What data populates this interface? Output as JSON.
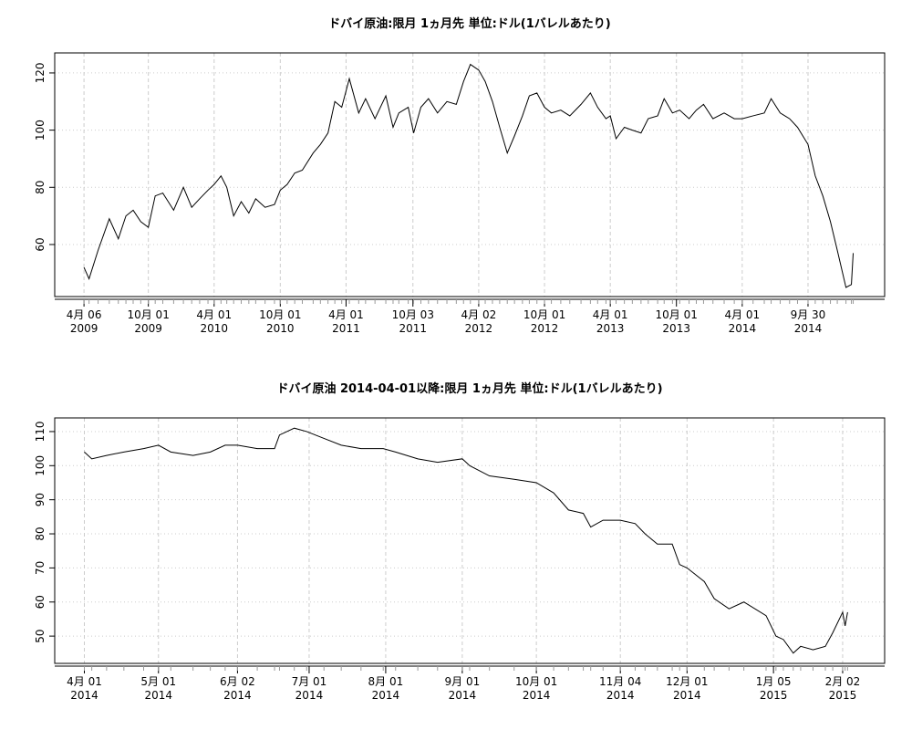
{
  "chart_data": [
    {
      "type": "line",
      "title": "ドバイ原油:限月 1ヵ月先 単位:ドル(1バレルあたり)",
      "color": "#000000",
      "grid": true,
      "xlim": [
        "2009-01-15",
        "2015-04-30"
      ],
      "ylim": [
        41.8,
        127
      ],
      "yticks": [
        60,
        80,
        100,
        120
      ],
      "xticks": [
        {
          "value": "2009-04-06",
          "label": [
            "4月 06",
            "2009"
          ]
        },
        {
          "value": "2009-10-01",
          "label": [
            "10月 01",
            "2009"
          ]
        },
        {
          "value": "2010-04-01",
          "label": [
            "4月 01",
            "2010"
          ]
        },
        {
          "value": "2010-10-01",
          "label": [
            "10月 01",
            "2010"
          ]
        },
        {
          "value": "2011-04-01",
          "label": [
            "4月 01",
            "2011"
          ]
        },
        {
          "value": "2011-10-03",
          "label": [
            "10月 03",
            "2011"
          ]
        },
        {
          "value": "2012-04-02",
          "label": [
            "4月 02",
            "2012"
          ]
        },
        {
          "value": "2012-10-01",
          "label": [
            "10月 01",
            "2012"
          ]
        },
        {
          "value": "2013-04-01",
          "label": [
            "4月 01",
            "2013"
          ]
        },
        {
          "value": "2013-10-01",
          "label": [
            "10月 01",
            "2013"
          ]
        },
        {
          "value": "2014-04-01",
          "label": [
            "4月 01",
            "2014"
          ]
        },
        {
          "value": "2014-09-30",
          "label": [
            "9月 30",
            "2014"
          ]
        }
      ],
      "x": [
        "2009-04-06",
        "2009-04-20",
        "2009-05-15",
        "2009-06-15",
        "2009-07-10",
        "2009-07-31",
        "2009-08-20",
        "2009-09-10",
        "2009-10-01",
        "2009-10-20",
        "2009-11-10",
        "2009-12-10",
        "2010-01-06",
        "2010-01-29",
        "2010-02-20",
        "2010-03-15",
        "2010-04-01",
        "2010-04-20",
        "2010-05-06",
        "2010-05-25",
        "2010-06-15",
        "2010-07-06",
        "2010-07-25",
        "2010-08-20",
        "2010-09-15",
        "2010-10-01",
        "2010-10-20",
        "2010-11-10",
        "2010-12-01",
        "2010-12-31",
        "2011-01-20",
        "2011-02-10",
        "2011-03-01",
        "2011-03-20",
        "2011-04-10",
        "2011-05-06",
        "2011-05-25",
        "2011-06-20",
        "2011-07-20",
        "2011-08-09",
        "2011-08-25",
        "2011-09-20",
        "2011-10-05",
        "2011-10-25",
        "2011-11-15",
        "2011-12-10",
        "2012-01-05",
        "2012-01-31",
        "2012-02-20",
        "2012-03-10",
        "2012-04-02",
        "2012-04-20",
        "2012-05-10",
        "2012-05-30",
        "2012-06-20",
        "2012-07-10",
        "2012-08-01",
        "2012-08-20",
        "2012-09-10",
        "2012-10-01",
        "2012-10-20",
        "2012-11-15",
        "2012-12-10",
        "2013-01-10",
        "2013-02-05",
        "2013-02-25",
        "2013-03-20",
        "2013-04-01",
        "2013-04-17",
        "2013-05-10",
        "2013-06-01",
        "2013-06-25",
        "2013-07-15",
        "2013-08-10",
        "2013-08-28",
        "2013-09-20",
        "2013-10-10",
        "2013-11-05",
        "2013-11-25",
        "2013-12-15",
        "2014-01-10",
        "2014-02-10",
        "2014-03-10",
        "2014-04-01",
        "2014-05-01",
        "2014-06-01",
        "2014-06-20",
        "2014-07-15",
        "2014-08-10",
        "2014-09-01",
        "2014-09-30",
        "2014-10-20",
        "2014-11-10",
        "2014-12-01",
        "2014-12-20",
        "2015-01-13",
        "2015-01-28",
        "2015-02-02"
      ],
      "values": [
        52,
        48,
        58,
        69,
        62,
        70,
        72,
        68,
        66,
        77,
        78,
        72,
        80,
        73,
        76,
        79,
        81,
        84,
        80,
        70,
        75,
        71,
        76,
        73,
        74,
        79,
        81,
        85,
        86,
        92,
        95,
        99,
        110,
        108,
        118,
        106,
        111,
        104,
        112,
        101,
        106,
        108,
        99,
        108,
        111,
        106,
        110,
        109,
        117,
        123,
        121,
        117,
        110,
        101,
        92,
        98,
        105,
        112,
        113,
        108,
        106,
        107,
        105,
        109,
        113,
        108,
        104,
        105,
        97,
        101,
        100,
        99,
        104,
        105,
        111,
        106,
        107,
        104,
        107,
        109,
        104,
        106,
        104,
        104,
        105,
        106,
        111,
        106,
        104,
        101,
        95,
        84,
        77,
        68,
        58,
        45,
        46,
        57
      ]
    },
    {
      "type": "line",
      "title": "ドバイ原油 2014-04-01以降:限月 1ヵ月先 単位:ドル(1バレルあたり)",
      "color": "#000000",
      "grid": true,
      "xlim": [
        "2014-03-20",
        "2015-02-19"
      ],
      "ylim": [
        42,
        114
      ],
      "yticks": [
        50,
        60,
        70,
        80,
        90,
        100,
        110
      ],
      "xticks": [
        {
          "value": "2014-04-01",
          "label": [
            "4月 01",
            "2014"
          ]
        },
        {
          "value": "2014-05-01",
          "label": [
            "5月 01",
            "2014"
          ]
        },
        {
          "value": "2014-06-02",
          "label": [
            "6月 02",
            "2014"
          ]
        },
        {
          "value": "2014-07-01",
          "label": [
            "7月 01",
            "2014"
          ]
        },
        {
          "value": "2014-08-01",
          "label": [
            "8月 01",
            "2014"
          ]
        },
        {
          "value": "2014-09-01",
          "label": [
            "9月 01",
            "2014"
          ]
        },
        {
          "value": "2014-10-01",
          "label": [
            "10月 01",
            "2014"
          ]
        },
        {
          "value": "2014-11-04",
          "label": [
            "11月 04",
            "2014"
          ]
        },
        {
          "value": "2014-12-01",
          "label": [
            "12月 01",
            "2014"
          ]
        },
        {
          "value": "2015-01-05",
          "label": [
            "1月 05",
            "2015"
          ]
        },
        {
          "value": "2015-02-02",
          "label": [
            "2月 02",
            "2015"
          ]
        }
      ],
      "x": [
        "2014-04-01",
        "2014-04-04",
        "2014-04-10",
        "2014-04-17",
        "2014-04-25",
        "2014-05-01",
        "2014-05-06",
        "2014-05-15",
        "2014-05-22",
        "2014-05-28",
        "2014-06-02",
        "2014-06-10",
        "2014-06-17",
        "2014-06-19",
        "2014-06-25",
        "2014-06-30",
        "2014-07-07",
        "2014-07-14",
        "2014-07-22",
        "2014-07-31",
        "2014-08-05",
        "2014-08-14",
        "2014-08-22",
        "2014-09-01",
        "2014-09-04",
        "2014-09-12",
        "2014-09-22",
        "2014-10-01",
        "2014-10-08",
        "2014-10-14",
        "2014-10-20",
        "2014-10-23",
        "2014-10-28",
        "2014-11-04",
        "2014-11-10",
        "2014-11-14",
        "2014-11-19",
        "2014-11-25",
        "2014-11-28",
        "2014-12-01",
        "2014-12-08",
        "2014-12-12",
        "2014-12-18",
        "2014-12-24",
        "2015-01-02",
        "2015-01-06",
        "2015-01-09",
        "2015-01-13",
        "2015-01-16",
        "2015-01-21",
        "2015-01-26",
        "2015-01-29",
        "2015-02-02",
        "2015-02-03",
        "2015-02-04"
      ],
      "values": [
        104,
        102,
        103,
        104,
        105,
        106,
        104,
        103,
        104,
        106,
        106,
        105,
        105,
        109,
        111,
        110,
        108,
        106,
        105,
        105,
        104,
        102,
        101,
        102,
        100,
        97,
        96,
        95,
        92,
        87,
        86,
        82,
        84,
        84,
        83,
        80,
        77,
        77,
        71,
        70,
        66,
        61,
        58,
        60,
        56,
        50,
        49,
        45,
        47,
        46,
        47,
        51,
        57,
        53,
        57
      ]
    }
  ]
}
